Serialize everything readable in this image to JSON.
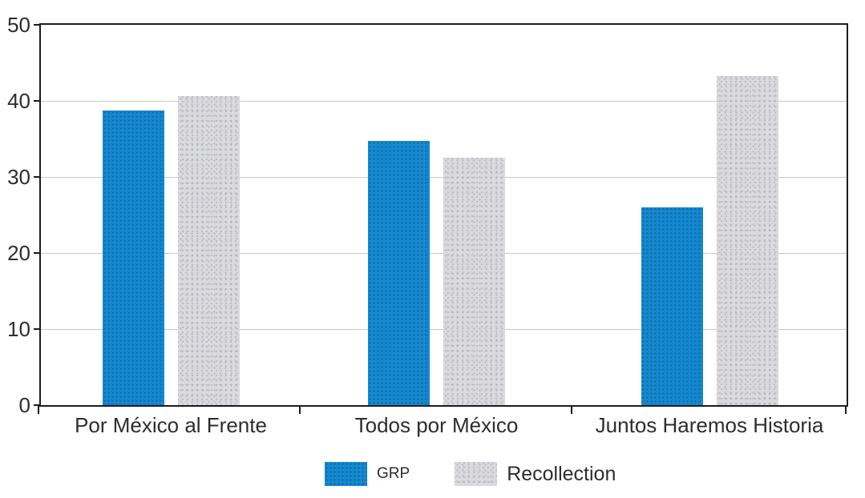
{
  "chart_data": {
    "type": "bar",
    "title": "",
    "xlabel": "",
    "ylabel": "",
    "categories": [
      "Por México al Frente",
      "Todos por México",
      "Juntos Haremos Historia"
    ],
    "series": [
      {
        "name": "GRP",
        "color": "#1588ce",
        "values": [
          38.7,
          34.7,
          26.0
        ]
      },
      {
        "name": "Recollection",
        "color": "#d9dadc",
        "values": [
          40.6,
          32.5,
          43.3
        ]
      }
    ],
    "ylim": [
      0,
      50
    ],
    "yticks": [
      0,
      10,
      20,
      30,
      40,
      50
    ],
    "grid": true,
    "plot_border": "#1c1c1c",
    "gridline_color": "#c8c8c8",
    "text_color": "#2d2d2d",
    "legend_position": "bottom"
  }
}
